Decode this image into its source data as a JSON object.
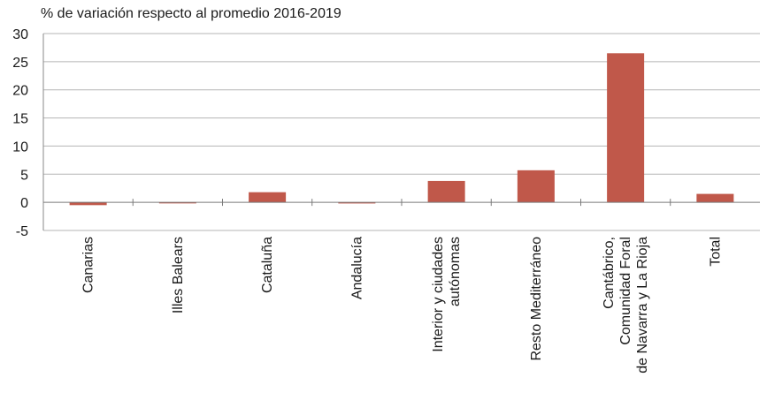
{
  "chart_data": {
    "type": "bar",
    "title": "% de variación respecto al promedio 2016-2019",
    "xlabel": "",
    "ylabel": "",
    "ylim": [
      -5,
      30
    ],
    "yticks": [
      -5,
      0,
      5,
      10,
      15,
      20,
      25,
      30
    ],
    "ytick_labels": [
      "-5",
      "0",
      "5",
      "10",
      "15",
      "20",
      "25",
      "30"
    ],
    "grid": "horizontal",
    "legend": "none",
    "bar_color": "#c0584a",
    "categories": [
      [
        "Canarias"
      ],
      [
        "Illes Balears"
      ],
      [
        "Cataluña"
      ],
      [
        "Andalucía"
      ],
      [
        "Interior y ciudades",
        "autónomas"
      ],
      [
        "Resto Mediterráneo"
      ],
      [
        "Cantábrico,",
        "Comunidad Foral",
        "de Navarra y La Rioja"
      ],
      [
        "Total"
      ]
    ],
    "values": [
      -0.5,
      0.0,
      1.8,
      -0.2,
      3.8,
      5.7,
      26.5,
      1.5
    ]
  }
}
